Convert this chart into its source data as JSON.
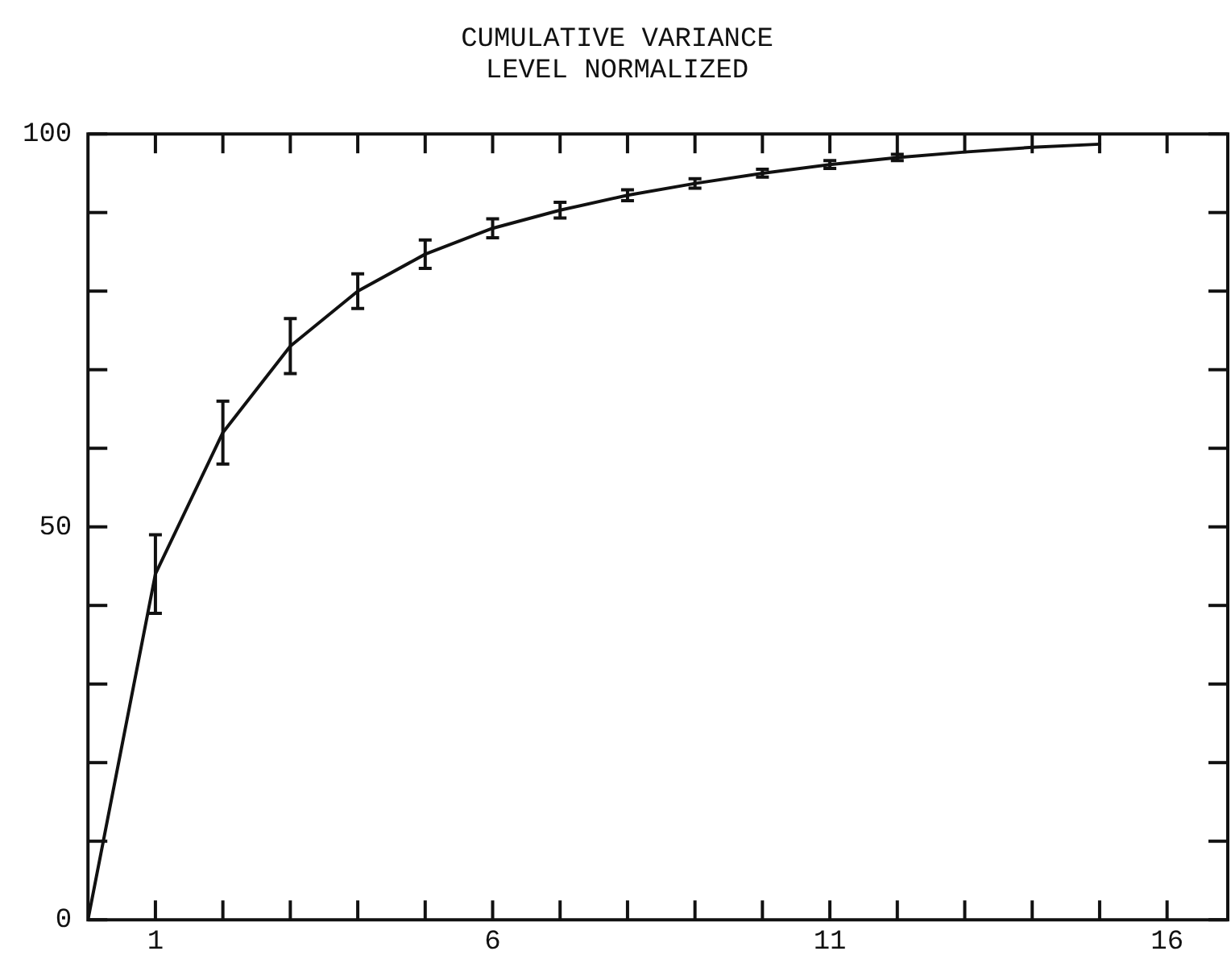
{
  "chart_data": {
    "type": "line",
    "title": "CUMULATIVE VARIANCE\nLEVEL NORMALIZED",
    "x": [
      0,
      1,
      2,
      3,
      4,
      5,
      6,
      7,
      8,
      9,
      10,
      11,
      12,
      13,
      14,
      15
    ],
    "series": [
      {
        "color": "#111111",
        "values": [
          0,
          44,
          62,
          73,
          80,
          84.7,
          88,
          90.3,
          92.2,
          93.7,
          95,
          96.1,
          97,
          97.7,
          98.3,
          98.7
        ],
        "errors": [
          null,
          5,
          4,
          3.5,
          2.2,
          1.8,
          1.2,
          1,
          0.7,
          0.6,
          0.5,
          0.5,
          0.4,
          null,
          null,
          null
        ]
      }
    ],
    "xlim": [
      0,
      16.9
    ],
    "xticks": [
      1,
      {
        "value": 2,
        "label": null
      },
      {
        "value": 3,
        "label": null
      },
      {
        "value": 4,
        "label": null
      },
      {
        "value": 5,
        "label": null
      },
      6,
      {
        "value": 7,
        "label": null
      },
      {
        "value": 8,
        "label": null
      },
      {
        "value": 9,
        "label": null
      },
      {
        "value": 10,
        "label": null
      },
      11,
      {
        "value": 12,
        "label": null
      },
      {
        "value": 13,
        "label": null
      },
      {
        "value": 14,
        "label": null
      },
      {
        "value": 15,
        "label": null
      },
      16
    ],
    "ylim": [
      0,
      100
    ],
    "yticks": [
      0,
      {
        "value": 10,
        "label": null
      },
      {
        "value": 20,
        "label": null
      },
      {
        "value": 30,
        "label": null
      },
      {
        "value": 40,
        "label": null
      },
      50,
      {
        "value": 60,
        "label": null
      },
      {
        "value": 70,
        "label": null
      },
      {
        "value": 80,
        "label": null
      },
      {
        "value": 90,
        "label": null
      },
      100
    ],
    "grid": false,
    "legend": false,
    "marker": "none",
    "line_style": "solid"
  }
}
